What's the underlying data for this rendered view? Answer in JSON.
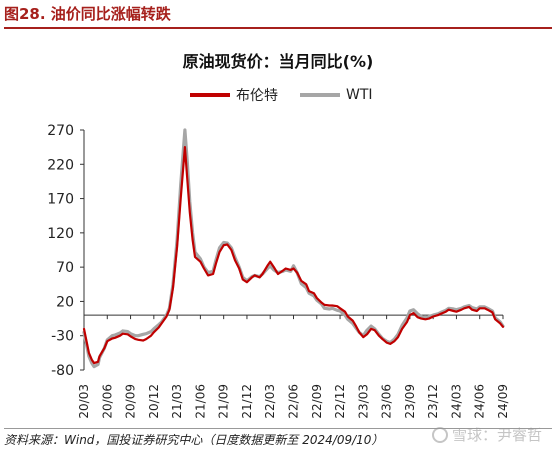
{
  "figure": {
    "title": "图28. 油价同比涨幅转跌",
    "source": "资料来源：Wind，国投证券研究中心（日度数据更新至 2024/09/10）",
    "watermark": "雪球：尹睿哲"
  },
  "legend": [
    {
      "name": "布伦特",
      "color": "#c00000"
    },
    {
      "name": "WTI",
      "color": "#a6a6a6"
    }
  ],
  "chart_data": {
    "type": "line",
    "title": "原油现货价：当月同比(%)",
    "xlabel": "",
    "ylabel": "",
    "ylim": [
      -80,
      270
    ],
    "yticks": [
      -80,
      -30,
      20,
      70,
      120,
      170,
      220,
      270
    ],
    "xticks": [
      "20/03",
      "20/06",
      "20/09",
      "20/12",
      "21/03",
      "21/06",
      "21/09",
      "21/12",
      "22/03",
      "22/06",
      "22/09",
      "22/12",
      "23/03",
      "23/06",
      "23/09",
      "23/12",
      "24/03",
      "24/06",
      "24/09"
    ],
    "x_range": [
      "2020-03",
      "2024-09"
    ],
    "grid": false,
    "legend_position": "top",
    "series": [
      {
        "name": "布伦特",
        "color": "#c00000",
        "points": [
          [
            "2020-03",
            -20
          ],
          [
            "2020-03-20",
            -55
          ],
          [
            "2020-04",
            -65
          ],
          [
            "2020-04-10",
            -70
          ],
          [
            "2020-04-25",
            -68
          ],
          [
            "2020-05",
            -60
          ],
          [
            "2020-05-20",
            -48
          ],
          [
            "2020-06",
            -38
          ],
          [
            "2020-06-20",
            -34
          ],
          [
            "2020-07",
            -33
          ],
          [
            "2020-07-20",
            -30
          ],
          [
            "2020-08",
            -27
          ],
          [
            "2020-08-20",
            -28
          ],
          [
            "2020-09",
            -31
          ],
          [
            "2020-09-20",
            -35
          ],
          [
            "2020-10",
            -36
          ],
          [
            "2020-10-20",
            -37
          ],
          [
            "2020-11",
            -35
          ],
          [
            "2020-11-20",
            -30
          ],
          [
            "2020-12",
            -25
          ],
          [
            "2020-12-20",
            -18
          ],
          [
            "2021-01",
            -12
          ],
          [
            "2021-01-20",
            -2
          ],
          [
            "2021-02",
            8
          ],
          [
            "2021-02-15",
            40
          ],
          [
            "2021-03",
            100
          ],
          [
            "2021-03-15",
            170
          ],
          [
            "2021-04",
            245
          ],
          [
            "2021-04-10",
            200
          ],
          [
            "2021-04-20",
            150
          ],
          [
            "2021-05",
            110
          ],
          [
            "2021-05-10",
            85
          ],
          [
            "2021-05-25",
            80
          ],
          [
            "2021-06",
            78
          ],
          [
            "2021-06-15",
            68
          ],
          [
            "2021-07",
            58
          ],
          [
            "2021-07-20",
            60
          ],
          [
            "2021-08",
            75
          ],
          [
            "2021-08-15",
            92
          ],
          [
            "2021-09",
            102
          ],
          [
            "2021-09-15",
            103
          ],
          [
            "2021-10",
            95
          ],
          [
            "2021-10-15",
            80
          ],
          [
            "2021-11",
            68
          ],
          [
            "2021-11-15",
            52
          ],
          [
            "2021-12",
            48
          ],
          [
            "2021-12-20",
            55
          ],
          [
            "2022-01",
            58
          ],
          [
            "2022-01-20",
            55
          ],
          [
            "2022-02",
            60
          ],
          [
            "2022-02-20",
            72
          ],
          [
            "2022-03",
            78
          ],
          [
            "2022-03-15",
            70
          ],
          [
            "2022-04",
            60
          ],
          [
            "2022-04-20",
            65
          ],
          [
            "2022-05",
            68
          ],
          [
            "2022-05-20",
            66
          ],
          [
            "2022-06",
            68
          ],
          [
            "2022-06-15",
            62
          ],
          [
            "2022-07",
            50
          ],
          [
            "2022-07-20",
            45
          ],
          [
            "2022-08",
            35
          ],
          [
            "2022-08-20",
            32
          ],
          [
            "2022-09",
            25
          ],
          [
            "2022-09-20",
            18
          ],
          [
            "2022-10",
            15
          ],
          [
            "2022-10-20",
            14
          ],
          [
            "2022-11",
            14
          ],
          [
            "2022-11-20",
            13
          ],
          [
            "2022-12",
            10
          ],
          [
            "2022-12-20",
            5
          ],
          [
            "2023-01",
            -2
          ],
          [
            "2023-01-20",
            -8
          ],
          [
            "2023-02",
            -15
          ],
          [
            "2023-02-15",
            -25
          ],
          [
            "2023-03",
            -32
          ],
          [
            "2023-03-15",
            -28
          ],
          [
            "2023-04",
            -20
          ],
          [
            "2023-04-15",
            -22
          ],
          [
            "2023-05",
            -30
          ],
          [
            "2023-05-15",
            -35
          ],
          [
            "2023-06",
            -40
          ],
          [
            "2023-06-15",
            -42
          ],
          [
            "2023-07",
            -38
          ],
          [
            "2023-07-15",
            -32
          ],
          [
            "2023-08",
            -20
          ],
          [
            "2023-08-20",
            -10
          ],
          [
            "2023-09",
            0
          ],
          [
            "2023-09-15",
            3
          ],
          [
            "2023-10",
            -3
          ],
          [
            "2023-10-15",
            -5
          ],
          [
            "2023-11",
            -6
          ],
          [
            "2023-11-15",
            -5
          ],
          [
            "2023-12",
            -2
          ],
          [
            "2023-12-20",
            0
          ],
          [
            "2024-01",
            2
          ],
          [
            "2024-01-20",
            5
          ],
          [
            "2024-02",
            8
          ],
          [
            "2024-02-20",
            6
          ],
          [
            "2024-03",
            5
          ],
          [
            "2024-03-20",
            8
          ],
          [
            "2024-04",
            10
          ],
          [
            "2024-04-20",
            12
          ],
          [
            "2024-05",
            8
          ],
          [
            "2024-05-20",
            6
          ],
          [
            "2024-06",
            10
          ],
          [
            "2024-06-20",
            10
          ],
          [
            "2024-07",
            8
          ],
          [
            "2024-07-20",
            4
          ],
          [
            "2024-08",
            -6
          ],
          [
            "2024-08-20",
            -12
          ],
          [
            "2024-09",
            -17
          ]
        ]
      },
      {
        "name": "WTI",
        "color": "#a6a6a6",
        "points": [
          [
            "2020-03",
            -25
          ],
          [
            "2020-03-20",
            -60
          ],
          [
            "2020-04",
            -70
          ],
          [
            "2020-04-10",
            -75
          ],
          [
            "2020-04-25",
            -72
          ],
          [
            "2020-05",
            -62
          ],
          [
            "2020-05-20",
            -48
          ],
          [
            "2020-06",
            -36
          ],
          [
            "2020-06-20",
            -30
          ],
          [
            "2020-07",
            -29
          ],
          [
            "2020-07-20",
            -26
          ],
          [
            "2020-08",
            -23
          ],
          [
            "2020-08-20",
            -24
          ],
          [
            "2020-09",
            -27
          ],
          [
            "2020-09-20",
            -30
          ],
          [
            "2020-10",
            -30
          ],
          [
            "2020-10-20",
            -28
          ],
          [
            "2020-11",
            -27
          ],
          [
            "2020-11-20",
            -24
          ],
          [
            "2020-12",
            -20
          ],
          [
            "2020-12-20",
            -14
          ],
          [
            "2021-01",
            -10
          ],
          [
            "2021-01-20",
            0
          ],
          [
            "2021-02",
            10
          ],
          [
            "2021-02-15",
            45
          ],
          [
            "2021-03",
            110
          ],
          [
            "2021-03-15",
            190
          ],
          [
            "2021-04",
            270
          ],
          [
            "2021-04-10",
            225
          ],
          [
            "2021-04-20",
            165
          ],
          [
            "2021-05",
            120
          ],
          [
            "2021-05-10",
            92
          ],
          [
            "2021-05-25",
            85
          ],
          [
            "2021-06",
            82
          ],
          [
            "2021-06-15",
            70
          ],
          [
            "2021-07",
            62
          ],
          [
            "2021-07-20",
            64
          ],
          [
            "2021-08",
            80
          ],
          [
            "2021-08-15",
            98
          ],
          [
            "2021-09",
            106
          ],
          [
            "2021-09-15",
            105
          ],
          [
            "2021-10",
            98
          ],
          [
            "2021-10-15",
            84
          ],
          [
            "2021-11",
            70
          ],
          [
            "2021-11-15",
            55
          ],
          [
            "2021-12",
            50
          ],
          [
            "2021-12-20",
            56
          ],
          [
            "2022-01",
            58
          ],
          [
            "2022-01-20",
            56
          ],
          [
            "2022-02",
            60
          ],
          [
            "2022-02-20",
            68
          ],
          [
            "2022-03",
            72
          ],
          [
            "2022-03-15",
            66
          ],
          [
            "2022-04",
            62
          ],
          [
            "2022-04-20",
            64
          ],
          [
            "2022-05",
            66
          ],
          [
            "2022-05-20",
            64
          ],
          [
            "2022-06",
            72
          ],
          [
            "2022-06-15",
            62
          ],
          [
            "2022-07",
            46
          ],
          [
            "2022-07-20",
            40
          ],
          [
            "2022-08",
            32
          ],
          [
            "2022-08-20",
            28
          ],
          [
            "2022-09",
            22
          ],
          [
            "2022-09-20",
            16
          ],
          [
            "2022-10",
            10
          ],
          [
            "2022-10-20",
            9
          ],
          [
            "2022-11",
            10
          ],
          [
            "2022-11-20",
            7
          ],
          [
            "2022-12",
            6
          ],
          [
            "2022-12-20",
            0
          ],
          [
            "2023-01",
            -6
          ],
          [
            "2023-01-20",
            -12
          ],
          [
            "2023-02",
            -18
          ],
          [
            "2023-02-15",
            -25
          ],
          [
            "2023-03",
            -30
          ],
          [
            "2023-03-15",
            -22
          ],
          [
            "2023-04",
            -16
          ],
          [
            "2023-04-15",
            -20
          ],
          [
            "2023-05",
            -28
          ],
          [
            "2023-05-15",
            -34
          ],
          [
            "2023-06",
            -38
          ],
          [
            "2023-06-15",
            -40
          ],
          [
            "2023-07",
            -35
          ],
          [
            "2023-07-15",
            -28
          ],
          [
            "2023-08",
            -15
          ],
          [
            "2023-08-20",
            -4
          ],
          [
            "2023-09",
            6
          ],
          [
            "2023-09-15",
            8
          ],
          [
            "2023-10",
            2
          ],
          [
            "2023-10-15",
            -2
          ],
          [
            "2023-11",
            -4
          ],
          [
            "2023-11-15",
            -2
          ],
          [
            "2023-12",
            0
          ],
          [
            "2023-12-20",
            2
          ],
          [
            "2024-01",
            4
          ],
          [
            "2024-01-20",
            7
          ],
          [
            "2024-02",
            10
          ],
          [
            "2024-02-20",
            9
          ],
          [
            "2024-03",
            8
          ],
          [
            "2024-03-20",
            10
          ],
          [
            "2024-04",
            12
          ],
          [
            "2024-04-20",
            14
          ],
          [
            "2024-05",
            11
          ],
          [
            "2024-05-20",
            9
          ],
          [
            "2024-06",
            12
          ],
          [
            "2024-06-20",
            12
          ],
          [
            "2024-07",
            10
          ],
          [
            "2024-07-20",
            6
          ],
          [
            "2024-08",
            -4
          ],
          [
            "2024-08-20",
            -10
          ],
          [
            "2024-09",
            -16
          ]
        ]
      }
    ]
  }
}
